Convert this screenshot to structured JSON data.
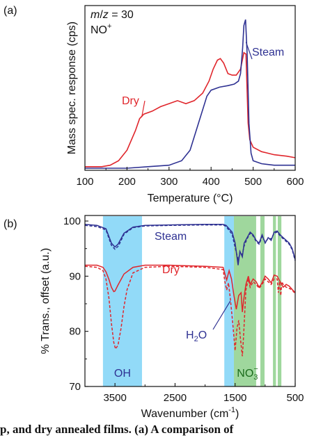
{
  "chart_data": [
    {
      "type": "line",
      "panel_label": "(a)",
      "annotations": [
        "m/z = 30",
        "NO+"
      ],
      "xlabel": "Temperature (°C)",
      "ylabel": "Mass spec. response (cps)",
      "xlim": [
        100,
        600
      ],
      "xticks": [
        "100",
        "200",
        "300",
        "400",
        "500",
        "600"
      ],
      "ylim": [
        0,
        1
      ],
      "grid": false,
      "series": [
        {
          "name": "Dry",
          "color": "#e0252b",
          "x": [
            100,
            140,
            160,
            180,
            200,
            220,
            230,
            240,
            260,
            280,
            300,
            320,
            340,
            360,
            380,
            395,
            405,
            415,
            422,
            430,
            440,
            450,
            460,
            470,
            478,
            483,
            488,
            492,
            500,
            520,
            550,
            580,
            600
          ],
          "y": [
            0.01,
            0.01,
            0.02,
            0.05,
            0.12,
            0.25,
            0.33,
            0.36,
            0.38,
            0.41,
            0.43,
            0.45,
            0.43,
            0.45,
            0.5,
            0.58,
            0.66,
            0.72,
            0.73,
            0.7,
            0.63,
            0.62,
            0.62,
            0.66,
            0.77,
            0.76,
            0.3,
            0.19,
            0.14,
            0.11,
            0.09,
            0.08,
            0.07
          ]
        },
        {
          "name": "Steam",
          "color": "#2e3192",
          "x": [
            100,
            200,
            250,
            300,
            330,
            350,
            370,
            390,
            400,
            420,
            440,
            455,
            465,
            470,
            475,
            478,
            482,
            486,
            490,
            495,
            500,
            520,
            550,
            600
          ],
          "y": [
            0.0,
            0.0,
            0.01,
            0.02,
            0.05,
            0.12,
            0.3,
            0.48,
            0.52,
            0.54,
            0.55,
            0.56,
            0.58,
            0.63,
            0.8,
            0.95,
            0.99,
            0.75,
            0.3,
            0.1,
            0.05,
            0.03,
            0.02,
            0.02
          ]
        }
      ]
    },
    {
      "type": "line",
      "panel_label": "(b)",
      "xlabel": "Wavenumber (cm-1)",
      "ylabel": "% Trans., offset (a.u.)",
      "xlim": [
        4000,
        500
      ],
      "xticks": [
        "3500",
        "2500",
        "1500",
        "500"
      ],
      "ylim": [
        70,
        100
      ],
      "yticks": [
        "70",
        "80",
        "90",
        "100"
      ],
      "band_labels": [
        "OH",
        "NO3−",
        "H2O"
      ],
      "series_labels": [
        "Steam",
        "Dry"
      ],
      "bands": [
        [
          3700,
          3050,
          "#7fd3f7"
        ],
        [
          1680,
          1520,
          "#7fd3f7"
        ],
        [
          1520,
          1150,
          "#8ed08c"
        ],
        [
          1080,
          1010,
          "#8ed08c"
        ],
        [
          870,
          820,
          "#8ed08c"
        ],
        [
          790,
          730,
          "#8ed08c"
        ]
      ],
      "series": [
        {
          "color": "#2e3192",
          "dashed": false,
          "x": [
            4000,
            3800,
            3650,
            3560,
            3500,
            3450,
            3350,
            3200,
            3000,
            2600,
            2000,
            1700,
            1650,
            1600,
            1550,
            1500,
            1450,
            1420,
            1380,
            1350,
            1300,
            1250,
            1200,
            1150,
            1100,
            1050,
            1000,
            950,
            900,
            850,
            800,
            750,
            700,
            650,
            600,
            550,
            500
          ],
          "y": [
            99.4,
            99.2,
            98.6,
            96.0,
            95.3,
            95.8,
            97.8,
            98.9,
            99.2,
            99.3,
            99.4,
            99.4,
            99.2,
            98.6,
            98.0,
            96.0,
            92.0,
            94.5,
            93.5,
            96.0,
            97.0,
            98.0,
            97.5,
            96.5,
            96.0,
            97.5,
            96.0,
            97.0,
            96.5,
            98.0,
            98.2,
            97.5,
            97.0,
            96.5,
            96.0,
            95.0,
            93.0
          ]
        },
        {
          "color": "#2e3192",
          "dashed": true,
          "x": [
            4000,
            3800,
            3650,
            3560,
            3500,
            3440,
            3350,
            3200,
            3000,
            2600,
            2000,
            1700,
            1650,
            1600,
            1550,
            1500,
            1450,
            1420,
            1380,
            1350,
            1300,
            1250,
            1200,
            1150,
            1100,
            1050,
            1000,
            950,
            900,
            850,
            800,
            750,
            700,
            650,
            600,
            550,
            500
          ],
          "y": [
            99.2,
            99.0,
            98.4,
            95.6,
            94.9,
            95.5,
            97.6,
            98.8,
            99.1,
            99.2,
            99.3,
            99.3,
            99.0,
            98.3,
            97.6,
            95.2,
            93.0,
            94.0,
            94.0,
            95.5,
            96.8,
            97.8,
            97.3,
            96.3,
            95.8,
            97.2,
            96.2,
            96.8,
            96.8,
            97.8,
            98.0,
            97.3,
            96.8,
            96.3,
            95.8,
            94.8,
            92.8
          ]
        },
        {
          "color": "#e0252b",
          "dashed": false,
          "x": [
            4000,
            3800,
            3700,
            3650,
            3600,
            3560,
            3520,
            3500,
            3450,
            3350,
            3200,
            3000,
            2600,
            2000,
            1700,
            1660,
            1640,
            1620,
            1600,
            1560,
            1520,
            1480,
            1440,
            1400,
            1380,
            1360,
            1320,
            1280,
            1250,
            1200,
            1150,
            1100,
            1050,
            1000,
            950,
            900,
            850,
            800,
            750,
            700,
            650,
            600,
            550,
            500
          ],
          "y": [
            92.0,
            92.0,
            91.6,
            90.8,
            89.4,
            88.0,
            87.2,
            87.3,
            88.4,
            90.4,
            91.6,
            92.0,
            92.0,
            91.8,
            91.6,
            90.0,
            89.3,
            90.2,
            91.0,
            89.5,
            86.5,
            84.0,
            86.5,
            87.0,
            83.5,
            85.5,
            88.5,
            90.0,
            88.5,
            89.5,
            89.0,
            88.0,
            88.8,
            90.0,
            89.5,
            88.8,
            90.2,
            90.0,
            89.0,
            88.0,
            88.5,
            88.2,
            87.6,
            87.0
          ]
        },
        {
          "color": "#e0252b",
          "dashed": true,
          "x": [
            4000,
            3800,
            3700,
            3650,
            3600,
            3560,
            3520,
            3490,
            3450,
            3400,
            3350,
            3300,
            3200,
            3000,
            2600,
            2000,
            1700,
            1670,
            1640,
            1610,
            1580,
            1540,
            1500,
            1470,
            1440,
            1410,
            1380,
            1360,
            1320,
            1280,
            1250,
            1200,
            1150,
            1100,
            1050,
            1000,
            950,
            900,
            850,
            800,
            780,
            760,
            740,
            720,
            700,
            650,
            600,
            550,
            500
          ],
          "y": [
            91.8,
            91.6,
            91.0,
            89.5,
            86.0,
            81.5,
            78.0,
            76.8,
            77.5,
            80.5,
            84.5,
            87.5,
            90.6,
            91.6,
            91.8,
            91.6,
            91.2,
            89.0,
            87.5,
            88.8,
            86.0,
            81.5,
            76.5,
            80.5,
            82.0,
            78.5,
            75.5,
            79.0,
            87.5,
            89.5,
            88.0,
            89.0,
            88.5,
            87.8,
            88.5,
            89.5,
            89.0,
            88.5,
            89.5,
            89.5,
            87.0,
            89.0,
            86.5,
            89.0,
            88.5,
            88.0,
            87.8,
            87.5,
            86.8
          ]
        }
      ]
    }
  ],
  "caption_text": "p, and dry annealed films. (a) A comparison of"
}
